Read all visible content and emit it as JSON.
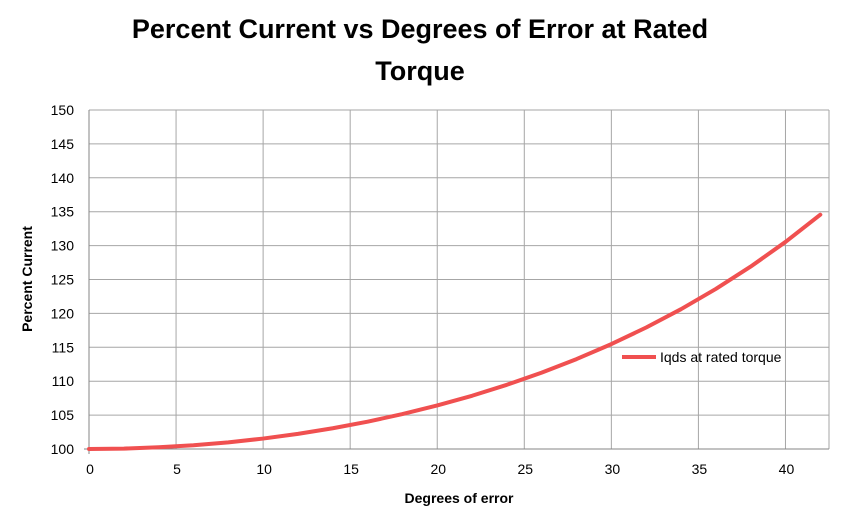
{
  "chart_data": {
    "type": "line",
    "title": "Percent Current vs Degrees of Error at Rated Torque",
    "xlabel": "Degrees of error",
    "ylabel": "Percent Current",
    "xlim": [
      0,
      42.5
    ],
    "ylim": [
      100,
      150
    ],
    "xticks": [
      "0",
      "5",
      "10",
      "15",
      "20",
      "25",
      "30",
      "35",
      "40"
    ],
    "yticks": [
      "100",
      "105",
      "110",
      "115",
      "120",
      "125",
      "130",
      "135",
      "140",
      "145",
      "150"
    ],
    "grid": true,
    "legend_position": "right",
    "series": [
      {
        "name": "Iqds at rated torque",
        "color": "#f05050",
        "x": [
          0,
          2,
          4,
          6,
          8,
          10,
          12,
          14,
          16,
          18,
          20,
          22,
          24,
          26,
          28,
          30,
          32,
          34,
          36,
          38,
          40,
          42
        ],
        "y": [
          100,
          100.06,
          100.25,
          100.55,
          100.98,
          101.54,
          102.23,
          103.06,
          104.03,
          105.15,
          106.42,
          107.85,
          109.47,
          111.26,
          113.26,
          115.47,
          117.92,
          120.62,
          123.61,
          126.9,
          130.54,
          134.56
        ]
      }
    ]
  }
}
